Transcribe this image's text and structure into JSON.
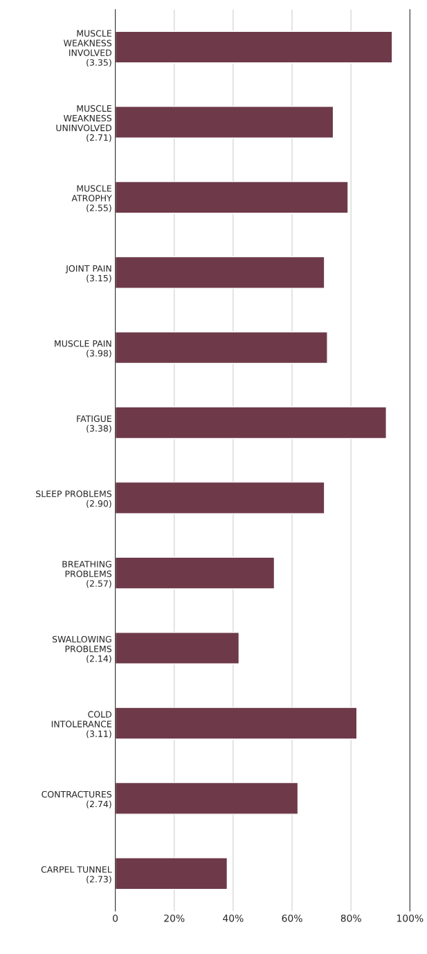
{
  "chart_data": {
    "type": "bar",
    "orientation": "horizontal",
    "categories": [
      "MUSCLE\nWEAKNESS\nINVOLVED\n(3.35)",
      "MUSCLE\nWEAKNESS\nUNINVOLVED\n(2.71)",
      "MUSCLE\nATROPHY\n(2.55)",
      "JOINT PAIN\n(3.15)",
      "MUSCLE PAIN\n(3.98)",
      "FATIGUE\n(3.38)",
      "SLEEP PROBLEMS\n(2.90)",
      "BREATHING\nPROBLEMS\n(2.57)",
      "SWALLOWING\nPROBLEMS\n(2.14)",
      "COLD\nINTOLERANCE\n(3.11)",
      "CONTRACTURES\n(2.74)",
      "CARPEL TUNNEL\n(2.73)"
    ],
    "values": [
      94,
      74,
      79,
      71,
      72,
      92,
      71,
      54,
      42,
      82,
      62,
      38
    ],
    "color": "#6e3a4a",
    "xlim": [
      0,
      100
    ],
    "xticks": [
      0,
      {
        "value": 20,
        "label": "20%"
      },
      {
        "value": 40,
        "label": "40%"
      },
      {
        "value": 60,
        "label": "60%"
      },
      {
        "value": 80,
        "label": "80%"
      },
      {
        "value": 100,
        "label": "100%"
      }
    ],
    "grid": "x"
  }
}
